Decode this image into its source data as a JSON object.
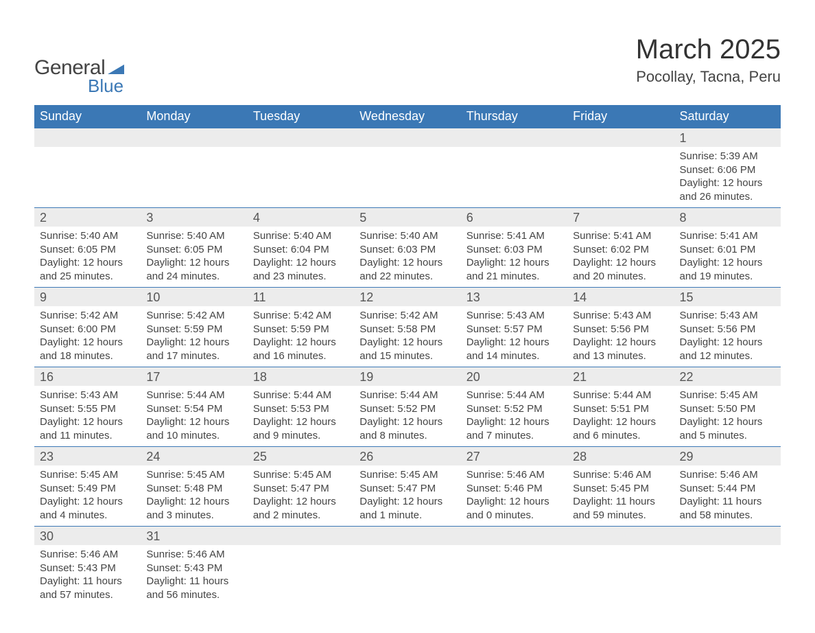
{
  "logo": {
    "text1": "General",
    "text2": "Blue",
    "shape_color": "#3b78b5"
  },
  "title": "March 2025",
  "location": "Pocollay, Tacna, Peru",
  "colors": {
    "header_bg": "#3b78b5",
    "header_text": "#ffffff",
    "daynum_bg": "#ececec",
    "divider": "#3b78b5",
    "text": "#444444",
    "background": "#ffffff"
  },
  "typography": {
    "title_fontsize": 40,
    "location_fontsize": 22,
    "weekday_fontsize": 18,
    "daynum_fontsize": 18,
    "body_fontsize": 15
  },
  "weekdays": [
    "Sunday",
    "Monday",
    "Tuesday",
    "Wednesday",
    "Thursday",
    "Friday",
    "Saturday"
  ],
  "calendar": {
    "type": "table",
    "columns": 7,
    "weeks": [
      [
        {
          "day": "",
          "lines": []
        },
        {
          "day": "",
          "lines": []
        },
        {
          "day": "",
          "lines": []
        },
        {
          "day": "",
          "lines": []
        },
        {
          "day": "",
          "lines": []
        },
        {
          "day": "",
          "lines": []
        },
        {
          "day": "1",
          "lines": [
            "Sunrise: 5:39 AM",
            "Sunset: 6:06 PM",
            "Daylight: 12 hours and 26 minutes."
          ]
        }
      ],
      [
        {
          "day": "2",
          "lines": [
            "Sunrise: 5:40 AM",
            "Sunset: 6:05 PM",
            "Daylight: 12 hours and 25 minutes."
          ]
        },
        {
          "day": "3",
          "lines": [
            "Sunrise: 5:40 AM",
            "Sunset: 6:05 PM",
            "Daylight: 12 hours and 24 minutes."
          ]
        },
        {
          "day": "4",
          "lines": [
            "Sunrise: 5:40 AM",
            "Sunset: 6:04 PM",
            "Daylight: 12 hours and 23 minutes."
          ]
        },
        {
          "day": "5",
          "lines": [
            "Sunrise: 5:40 AM",
            "Sunset: 6:03 PM",
            "Daylight: 12 hours and 22 minutes."
          ]
        },
        {
          "day": "6",
          "lines": [
            "Sunrise: 5:41 AM",
            "Sunset: 6:03 PM",
            "Daylight: 12 hours and 21 minutes."
          ]
        },
        {
          "day": "7",
          "lines": [
            "Sunrise: 5:41 AM",
            "Sunset: 6:02 PM",
            "Daylight: 12 hours and 20 minutes."
          ]
        },
        {
          "day": "8",
          "lines": [
            "Sunrise: 5:41 AM",
            "Sunset: 6:01 PM",
            "Daylight: 12 hours and 19 minutes."
          ]
        }
      ],
      [
        {
          "day": "9",
          "lines": [
            "Sunrise: 5:42 AM",
            "Sunset: 6:00 PM",
            "Daylight: 12 hours and 18 minutes."
          ]
        },
        {
          "day": "10",
          "lines": [
            "Sunrise: 5:42 AM",
            "Sunset: 5:59 PM",
            "Daylight: 12 hours and 17 minutes."
          ]
        },
        {
          "day": "11",
          "lines": [
            "Sunrise: 5:42 AM",
            "Sunset: 5:59 PM",
            "Daylight: 12 hours and 16 minutes."
          ]
        },
        {
          "day": "12",
          "lines": [
            "Sunrise: 5:42 AM",
            "Sunset: 5:58 PM",
            "Daylight: 12 hours and 15 minutes."
          ]
        },
        {
          "day": "13",
          "lines": [
            "Sunrise: 5:43 AM",
            "Sunset: 5:57 PM",
            "Daylight: 12 hours and 14 minutes."
          ]
        },
        {
          "day": "14",
          "lines": [
            "Sunrise: 5:43 AM",
            "Sunset: 5:56 PM",
            "Daylight: 12 hours and 13 minutes."
          ]
        },
        {
          "day": "15",
          "lines": [
            "Sunrise: 5:43 AM",
            "Sunset: 5:56 PM",
            "Daylight: 12 hours and 12 minutes."
          ]
        }
      ],
      [
        {
          "day": "16",
          "lines": [
            "Sunrise: 5:43 AM",
            "Sunset: 5:55 PM",
            "Daylight: 12 hours and 11 minutes."
          ]
        },
        {
          "day": "17",
          "lines": [
            "Sunrise: 5:44 AM",
            "Sunset: 5:54 PM",
            "Daylight: 12 hours and 10 minutes."
          ]
        },
        {
          "day": "18",
          "lines": [
            "Sunrise: 5:44 AM",
            "Sunset: 5:53 PM",
            "Daylight: 12 hours and 9 minutes."
          ]
        },
        {
          "day": "19",
          "lines": [
            "Sunrise: 5:44 AM",
            "Sunset: 5:52 PM",
            "Daylight: 12 hours and 8 minutes."
          ]
        },
        {
          "day": "20",
          "lines": [
            "Sunrise: 5:44 AM",
            "Sunset: 5:52 PM",
            "Daylight: 12 hours and 7 minutes."
          ]
        },
        {
          "day": "21",
          "lines": [
            "Sunrise: 5:44 AM",
            "Sunset: 5:51 PM",
            "Daylight: 12 hours and 6 minutes."
          ]
        },
        {
          "day": "22",
          "lines": [
            "Sunrise: 5:45 AM",
            "Sunset: 5:50 PM",
            "Daylight: 12 hours and 5 minutes."
          ]
        }
      ],
      [
        {
          "day": "23",
          "lines": [
            "Sunrise: 5:45 AM",
            "Sunset: 5:49 PM",
            "Daylight: 12 hours and 4 minutes."
          ]
        },
        {
          "day": "24",
          "lines": [
            "Sunrise: 5:45 AM",
            "Sunset: 5:48 PM",
            "Daylight: 12 hours and 3 minutes."
          ]
        },
        {
          "day": "25",
          "lines": [
            "Sunrise: 5:45 AM",
            "Sunset: 5:47 PM",
            "Daylight: 12 hours and 2 minutes."
          ]
        },
        {
          "day": "26",
          "lines": [
            "Sunrise: 5:45 AM",
            "Sunset: 5:47 PM",
            "Daylight: 12 hours and 1 minute."
          ]
        },
        {
          "day": "27",
          "lines": [
            "Sunrise: 5:46 AM",
            "Sunset: 5:46 PM",
            "Daylight: 12 hours and 0 minutes."
          ]
        },
        {
          "day": "28",
          "lines": [
            "Sunrise: 5:46 AM",
            "Sunset: 5:45 PM",
            "Daylight: 11 hours and 59 minutes."
          ]
        },
        {
          "day": "29",
          "lines": [
            "Sunrise: 5:46 AM",
            "Sunset: 5:44 PM",
            "Daylight: 11 hours and 58 minutes."
          ]
        }
      ],
      [
        {
          "day": "30",
          "lines": [
            "Sunrise: 5:46 AM",
            "Sunset: 5:43 PM",
            "Daylight: 11 hours and 57 minutes."
          ]
        },
        {
          "day": "31",
          "lines": [
            "Sunrise: 5:46 AM",
            "Sunset: 5:43 PM",
            "Daylight: 11 hours and 56 minutes."
          ]
        },
        {
          "day": "",
          "lines": []
        },
        {
          "day": "",
          "lines": []
        },
        {
          "day": "",
          "lines": []
        },
        {
          "day": "",
          "lines": []
        },
        {
          "day": "",
          "lines": []
        }
      ]
    ]
  }
}
